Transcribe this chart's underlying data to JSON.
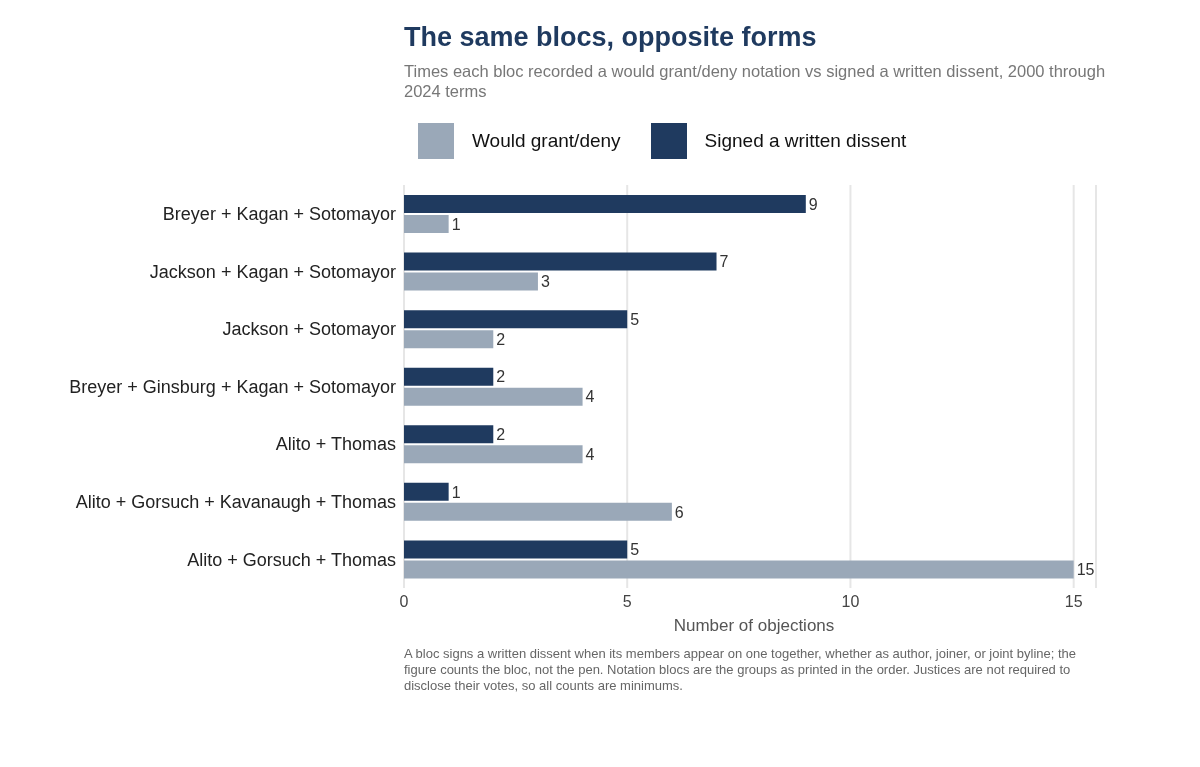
{
  "chart_data": {
    "type": "bar",
    "orientation": "horizontal",
    "title": "The same blocs, opposite forms",
    "subtitle": "Times each bloc recorded a would grant/deny notation vs signed a written dissent, 2000 through 2024 terms",
    "xlabel": "Number of objections",
    "categories": [
      "Breyer + Kagan + Sotomayor",
      "Jackson + Kagan + Sotomayor",
      "Jackson + Sotomayor",
      "Breyer + Ginsburg + Kagan + Sotomayor",
      "Alito + Thomas",
      "Alito + Gorsuch + Kavanaugh + Thomas",
      "Alito + Gorsuch + Thomas"
    ],
    "series": [
      {
        "name": "Would grant/deny",
        "color": "#9aa8b8",
        "values": [
          1,
          3,
          2,
          4,
          4,
          6,
          15
        ]
      },
      {
        "name": "Signed a written dissent",
        "color": "#1f3a5f",
        "values": [
          9,
          7,
          5,
          2,
          2,
          1,
          5
        ]
      }
    ],
    "xlim": [
      0,
      15.5
    ],
    "xticks": [
      0,
      5,
      10,
      15
    ],
    "grid": "x",
    "legend": "top",
    "data_labels": true,
    "annotations": [
      "A bloc signs a written dissent when its members appear on one together, whether as author, joiner, or joint byline; the figure counts the bloc, not the pen. Notation blocs are the groups as printed in the order. Justices are not required to disclose their votes, so all counts are minimums."
    ]
  }
}
